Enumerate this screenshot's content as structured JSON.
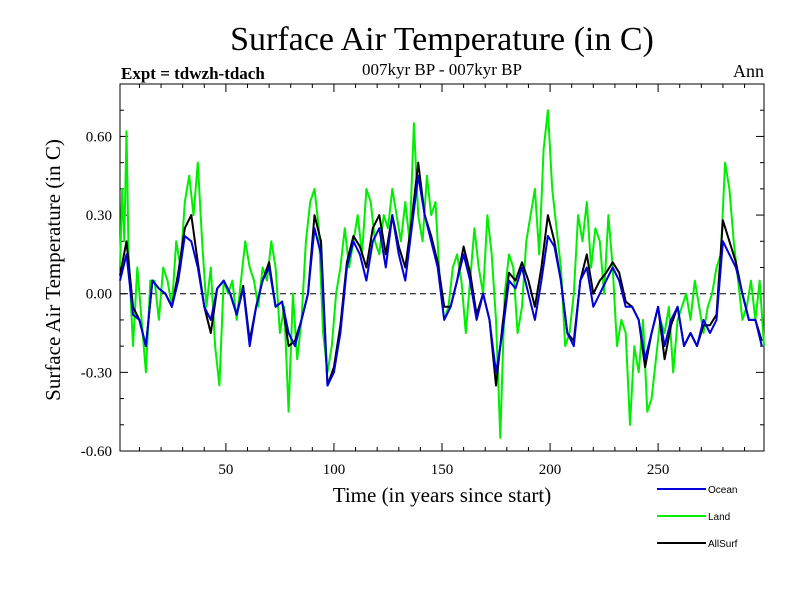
{
  "chart_data": {
    "type": "line",
    "title": "Surface Air Temperature (in C)",
    "subtitle": "007kyr BP - 007kyr BP",
    "left_note": "Expt = tdwzh-tdach",
    "right_note": "Ann",
    "xlabel": "Time (in years since start)",
    "ylabel": "Surface Air Temperature (in C)",
    "xlim": [
      1,
      299
    ],
    "ylim": [
      -0.6,
      0.8
    ],
    "xticks": [
      50,
      100,
      150,
      200,
      250
    ],
    "yticks": [
      -0.6,
      -0.3,
      0.0,
      0.3,
      0.6
    ],
    "ytick_labels": [
      "-0.60",
      "-0.30",
      "0.00",
      "0.30",
      "0.60"
    ],
    "zero_line": "dashed",
    "grid": false,
    "legend_position": "bottom-right",
    "series": [
      {
        "name": "Ocean",
        "color": "#0000dd",
        "x": [
          1,
          4,
          7,
          10,
          13,
          16,
          19,
          22,
          25,
          28,
          31,
          34,
          37,
          40,
          43,
          46,
          49,
          52,
          55,
          58,
          61,
          64,
          67,
          70,
          73,
          76,
          79,
          82,
          85,
          88,
          91,
          94,
          97,
          100,
          103,
          106,
          109,
          112,
          115,
          118,
          121,
          124,
          127,
          130,
          133,
          136,
          139,
          142,
          145,
          148,
          151,
          154,
          157,
          160,
          163,
          166,
          169,
          172,
          175,
          178,
          181,
          184,
          187,
          190,
          193,
          196,
          199,
          202,
          205,
          208,
          211,
          214,
          217,
          220,
          223,
          226,
          229,
          232,
          235,
          238,
          241,
          244,
          247,
          250,
          253,
          256,
          259,
          262,
          265,
          268,
          271,
          274,
          277,
          280,
          283,
          286,
          289,
          292,
          295,
          298
        ],
        "values": [
          0.05,
          0.15,
          -0.08,
          -0.1,
          -0.2,
          0.05,
          0.02,
          0.0,
          -0.05,
          0.05,
          0.22,
          0.2,
          0.1,
          -0.05,
          -0.1,
          0.02,
          0.05,
          0.0,
          -0.08,
          0.02,
          -0.2,
          -0.05,
          0.05,
          0.1,
          -0.05,
          -0.03,
          -0.15,
          -0.2,
          -0.1,
          0.0,
          0.25,
          0.15,
          -0.35,
          -0.3,
          -0.15,
          0.1,
          0.2,
          0.15,
          0.05,
          0.2,
          0.25,
          0.1,
          0.3,
          0.15,
          0.05,
          0.25,
          0.45,
          0.3,
          0.2,
          0.1,
          -0.1,
          -0.05,
          0.05,
          0.15,
          0.05,
          -0.1,
          0.0,
          -0.1,
          -0.3,
          -0.15,
          0.05,
          0.02,
          0.1,
          0.0,
          -0.1,
          0.05,
          0.22,
          0.18,
          0.05,
          -0.15,
          -0.2,
          0.05,
          0.1,
          -0.05,
          0.0,
          0.05,
          0.1,
          0.05,
          -0.05,
          -0.05,
          -0.1,
          -0.25,
          -0.15,
          -0.05,
          -0.2,
          -0.1,
          -0.05,
          -0.2,
          -0.15,
          -0.2,
          -0.1,
          -0.15,
          -0.1,
          0.2,
          0.15,
          0.1,
          0.0,
          -0.1,
          -0.1,
          -0.2
        ]
      },
      {
        "name": "Land",
        "color": "#00ee00",
        "x": [
          1,
          2,
          3,
          4,
          5,
          7,
          9,
          11,
          13,
          15,
          17,
          19,
          21,
          23,
          25,
          27,
          29,
          31,
          33,
          35,
          37,
          39,
          41,
          43,
          45,
          47,
          49,
          51,
          53,
          55,
          57,
          59,
          61,
          63,
          65,
          67,
          69,
          71,
          73,
          75,
          77,
          79,
          81,
          83,
          85,
          87,
          89,
          91,
          93,
          95,
          97,
          99,
          101,
          103,
          105,
          107,
          109,
          111,
          113,
          115,
          117,
          119,
          121,
          123,
          125,
          127,
          129,
          131,
          133,
          135,
          137,
          139,
          141,
          143,
          145,
          147,
          149,
          151,
          153,
          155,
          157,
          159,
          161,
          163,
          165,
          167,
          169,
          171,
          173,
          175,
          177,
          179,
          181,
          183,
          185,
          187,
          189,
          191,
          193,
          195,
          197,
          199,
          201,
          203,
          205,
          207,
          209,
          211,
          213,
          215,
          217,
          219,
          221,
          223,
          225,
          227,
          229,
          231,
          233,
          235,
          237,
          239,
          241,
          243,
          245,
          247,
          249,
          251,
          253,
          255,
          257,
          259,
          261,
          263,
          265,
          267,
          269,
          271,
          273,
          275,
          277,
          279,
          281,
          283,
          285,
          287,
          289,
          291,
          293,
          295,
          297,
          299
        ],
        "values": [
          0.1,
          0.4,
          0.2,
          0.62,
          0.15,
          -0.2,
          0.1,
          -0.1,
          -0.3,
          0.05,
          0.05,
          -0.1,
          0.1,
          0.05,
          -0.05,
          0.2,
          0.1,
          0.35,
          0.45,
          0.3,
          0.5,
          0.2,
          -0.05,
          0.1,
          -0.2,
          -0.35,
          0.05,
          0.0,
          0.05,
          -0.1,
          0.05,
          0.2,
          0.1,
          0.05,
          -0.05,
          0.1,
          0.05,
          0.2,
          0.1,
          -0.15,
          -0.05,
          -0.45,
          0.0,
          -0.25,
          -0.1,
          0.2,
          0.35,
          0.4,
          0.25,
          -0.15,
          -0.3,
          -0.2,
          0.0,
          0.1,
          0.25,
          0.1,
          0.2,
          0.3,
          0.15,
          0.4,
          0.35,
          0.2,
          0.15,
          0.3,
          0.25,
          0.4,
          0.3,
          0.2,
          0.35,
          0.2,
          0.65,
          0.3,
          0.2,
          0.45,
          0.3,
          0.35,
          0.05,
          -0.1,
          -0.05,
          0.1,
          0.15,
          0.05,
          -0.15,
          0.05,
          0.25,
          0.1,
          0.0,
          0.3,
          0.15,
          -0.1,
          -0.55,
          0.0,
          0.15,
          0.1,
          -0.15,
          -0.05,
          0.2,
          0.3,
          0.4,
          0.15,
          0.55,
          0.7,
          0.4,
          0.25,
          0.1,
          -0.2,
          -0.15,
          0.0,
          0.3,
          0.2,
          0.35,
          0.1,
          0.25,
          0.2,
          0.0,
          0.3,
          0.1,
          -0.2,
          -0.1,
          -0.15,
          -0.5,
          -0.2,
          -0.3,
          -0.1,
          -0.45,
          -0.4,
          -0.25,
          -0.1,
          -0.15,
          -0.05,
          -0.3,
          -0.1,
          -0.05,
          0.0,
          -0.1,
          0.05,
          -0.05,
          -0.15,
          -0.05,
          0.0,
          0.1,
          0.15,
          0.5,
          0.4,
          0.2,
          0.05,
          -0.1,
          -0.05,
          0.05,
          -0.1,
          0.05,
          -0.2
        ]
      },
      {
        "name": "AllSurf",
        "color": "#000000",
        "x": [
          1,
          4,
          7,
          10,
          13,
          16,
          19,
          22,
          25,
          28,
          31,
          34,
          37,
          40,
          43,
          46,
          49,
          52,
          55,
          58,
          61,
          64,
          67,
          70,
          73,
          76,
          79,
          82,
          85,
          88,
          91,
          94,
          97,
          100,
          103,
          106,
          109,
          112,
          115,
          118,
          121,
          124,
          127,
          130,
          133,
          136,
          139,
          142,
          145,
          148,
          151,
          154,
          157,
          160,
          163,
          166,
          169,
          172,
          175,
          178,
          181,
          184,
          187,
          190,
          193,
          196,
          199,
          202,
          205,
          208,
          211,
          214,
          217,
          220,
          223,
          226,
          229,
          232,
          235,
          238,
          241,
          244,
          247,
          250,
          253,
          256,
          259,
          262,
          265,
          268,
          271,
          274,
          277,
          280,
          283,
          286,
          289,
          292,
          295,
          298
        ],
        "values": [
          0.07,
          0.2,
          -0.05,
          -0.1,
          -0.2,
          0.05,
          0.02,
          0.0,
          -0.05,
          0.08,
          0.25,
          0.3,
          0.12,
          -0.05,
          -0.15,
          0.02,
          0.05,
          0.0,
          -0.08,
          0.03,
          -0.18,
          -0.05,
          0.05,
          0.12,
          -0.05,
          -0.03,
          -0.2,
          -0.18,
          -0.1,
          0.0,
          0.3,
          0.2,
          -0.35,
          -0.28,
          -0.12,
          0.12,
          0.22,
          0.18,
          0.1,
          0.25,
          0.3,
          0.15,
          0.3,
          0.18,
          0.1,
          0.28,
          0.5,
          0.3,
          0.22,
          0.12,
          -0.05,
          -0.05,
          0.05,
          0.18,
          0.08,
          -0.08,
          0.0,
          -0.1,
          -0.35,
          -0.12,
          0.08,
          0.05,
          0.12,
          0.05,
          -0.05,
          0.1,
          0.3,
          0.2,
          0.05,
          -0.15,
          -0.18,
          0.05,
          0.15,
          0.0,
          0.05,
          0.08,
          0.12,
          0.08,
          -0.03,
          -0.05,
          -0.1,
          -0.28,
          -0.15,
          -0.05,
          -0.25,
          -0.12,
          -0.05,
          -0.2,
          -0.15,
          -0.2,
          -0.12,
          -0.12,
          -0.08,
          0.28,
          0.2,
          0.12,
          0.0,
          -0.1,
          -0.1,
          -0.18
        ]
      }
    ]
  }
}
